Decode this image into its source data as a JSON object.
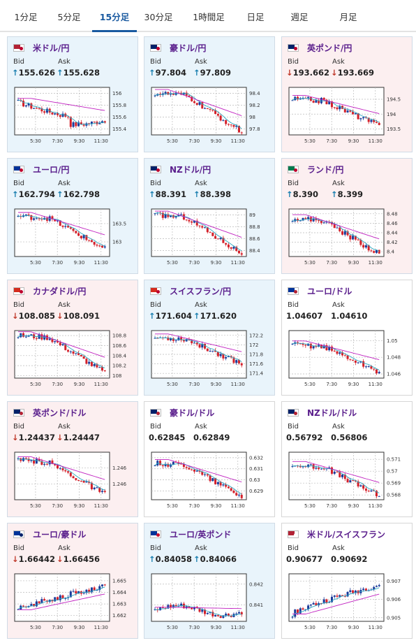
{
  "tabs": [
    {
      "label": "1分足",
      "active": false
    },
    {
      "label": "5分足",
      "active": false
    },
    {
      "label": "15分足",
      "active": true
    },
    {
      "label": "30分足",
      "active": false
    },
    {
      "label": "1時間足",
      "active": false
    },
    {
      "label": "日足",
      "active": false
    },
    {
      "label": "週足",
      "active": false
    },
    {
      "label": "月足",
      "active": false
    }
  ],
  "labels": {
    "bid": "Bid",
    "ask": "Ask"
  },
  "colors": {
    "up_candle": "#1a3a9a",
    "down_candle": "#d4202a",
    "ma_short": "#2aa8c0",
    "ma_long": "#c020c0",
    "pair_text": "#5a1e8c"
  },
  "x_ticks": [
    "5:30",
    "7:30",
    "9:30",
    "11:30"
  ],
  "cards": [
    {
      "pair": "米ドル/円",
      "flag": "us-jp",
      "bg": "up",
      "bid": "155.626",
      "ask": "155.628",
      "dir": "up",
      "chart_data": {
        "type": "candlestick",
        "y_ticks": [
          "156",
          "155.8",
          "155.6",
          "155.4"
        ],
        "ylim": [
          155.3,
          156.1
        ],
        "start": 155.85,
        "end": 155.55,
        "pattern": "dip"
      }
    },
    {
      "pair": "豪ドル/円",
      "flag": "au-jp",
      "bg": "up",
      "bid": "97.804",
      "ask": "97.809",
      "dir": "up",
      "chart_data": {
        "type": "candlestick",
        "y_ticks": [
          "98.4",
          "98.2",
          "98",
          "97.8"
        ],
        "ylim": [
          97.7,
          98.5
        ],
        "start": 98.4,
        "end": 97.75,
        "pattern": "down"
      }
    },
    {
      "pair": "英ポンド/円",
      "flag": "uk-jp",
      "bg": "down",
      "bid": "193.662",
      "ask": "193.669",
      "dir": "down",
      "chart_data": {
        "type": "candlestick",
        "y_ticks": [
          "194.5",
          "194",
          "193.5"
        ],
        "ylim": [
          193.3,
          194.9
        ],
        "start": 194.5,
        "end": 193.6,
        "pattern": "down"
      }
    },
    {
      "pair": "ユーロ/円",
      "flag": "eu-jp",
      "bg": "up",
      "bid": "162.794",
      "ask": "162.798",
      "dir": "up",
      "chart_data": {
        "type": "candlestick",
        "y_ticks": [
          "163.5",
          "163"
        ],
        "ylim": [
          162.6,
          163.9
        ],
        "start": 163.7,
        "end": 162.8,
        "pattern": "down"
      }
    },
    {
      "pair": "NZドル/円",
      "flag": "nz-jp",
      "bg": "up",
      "bid": "88.391",
      "ask": "88.398",
      "dir": "up",
      "chart_data": {
        "type": "candlestick",
        "y_ticks": [
          "89",
          "88.8",
          "88.6",
          "88.4"
        ],
        "ylim": [
          88.3,
          89.1
        ],
        "start": 89.0,
        "end": 88.35,
        "pattern": "down"
      }
    },
    {
      "pair": "ランド/円",
      "flag": "za-jp",
      "bg": "down",
      "bid": "8.390",
      "ask": "8.399",
      "dir": "up",
      "chart_data": {
        "type": "candlestick",
        "y_ticks": [
          "8.48",
          "8.46",
          "8.44",
          "8.42",
          "8.4"
        ],
        "ylim": [
          8.39,
          8.49
        ],
        "start": 8.47,
        "end": 8.395,
        "pattern": "down"
      }
    },
    {
      "pair": "カナダドル/円",
      "flag": "ca-jp",
      "bg": "down",
      "bid": "108.085",
      "ask": "108.091",
      "dir": "down",
      "chart_data": {
        "type": "candlestick",
        "y_ticks": [
          "108.8",
          "108.6",
          "108.4",
          "108.2",
          "108"
        ],
        "ylim": [
          107.95,
          108.9
        ],
        "start": 108.8,
        "end": 108.05,
        "pattern": "down"
      }
    },
    {
      "pair": "スイスフラン/円",
      "flag": "ch-jp",
      "bg": "up",
      "bid": "171.604",
      "ask": "171.620",
      "dir": "up",
      "chart_data": {
        "type": "candlestick",
        "y_ticks": [
          "172.2",
          "172",
          "171.8",
          "171.6",
          "171.4"
        ],
        "ylim": [
          171.3,
          172.3
        ],
        "start": 172.15,
        "end": 171.6,
        "pattern": "down"
      }
    },
    {
      "pair": "ユーロ/ドル",
      "flag": "eu-us",
      "bg": "flat",
      "bid": "1.04607",
      "ask": "1.04610",
      "dir": "none",
      "chart_data": {
        "type": "candlestick",
        "y_ticks": [
          "1.05",
          "1.048",
          "1.046"
        ],
        "ylim": [
          1.0455,
          1.0512
        ],
        "start": 1.0495,
        "end": 1.0462,
        "pattern": "down"
      }
    },
    {
      "pair": "英ポンド/ドル",
      "flag": "uk-us",
      "bg": "down",
      "bid": "1.24437",
      "ask": "1.24447",
      "dir": "down",
      "chart_data": {
        "type": "candlestick",
        "y_ticks": [
          "1.246",
          "1.246"
        ],
        "ylim": [
          1.2438,
          1.2472
        ],
        "start": 1.2466,
        "end": 1.2442,
        "pattern": "down"
      }
    },
    {
      "pair": "豪ドル/ドル",
      "flag": "au-us",
      "bg": "flat",
      "bid": "0.62845",
      "ask": "0.62849",
      "dir": "none",
      "chart_data": {
        "type": "candlestick",
        "y_ticks": [
          "0.632",
          "0.631",
          "0.63",
          "0.629"
        ],
        "ylim": [
          0.6282,
          0.6325
        ],
        "start": 0.6315,
        "end": 0.6285,
        "pattern": "down"
      }
    },
    {
      "pair": "NZドル/ドル",
      "flag": "nz-us",
      "bg": "flat",
      "bid": "0.56792",
      "ask": "0.56806",
      "dir": "none",
      "chart_data": {
        "type": "candlestick",
        "y_ticks": [
          "0.571",
          "0.57",
          "0.569",
          "0.568"
        ],
        "ylim": [
          0.5676,
          0.5716
        ],
        "start": 0.5705,
        "end": 0.5679,
        "pattern": "down"
      }
    },
    {
      "pair": "ユーロ/豪ドル",
      "flag": "eu-au",
      "bg": "down",
      "bid": "1.66442",
      "ask": "1.66456",
      "dir": "down",
      "chart_data": {
        "type": "candlestick",
        "y_ticks": [
          "1.665",
          "1.664",
          "1.663",
          "1.662"
        ],
        "ylim": [
          1.6615,
          1.6656
        ],
        "start": 1.6625,
        "end": 1.6645,
        "pattern": "up"
      }
    },
    {
      "pair": "ユーロ/英ポンド",
      "flag": "eu-uk",
      "bg": "up",
      "bid": "0.84058",
      "ask": "0.84066",
      "dir": "up",
      "chart_data": {
        "type": "candlestick",
        "y_ticks": [
          "0.842",
          "0.841"
        ],
        "ylim": [
          0.8402,
          0.8425
        ],
        "start": 0.8407,
        "end": 0.8406,
        "pattern": "flat"
      }
    },
    {
      "pair": "米ドル/スイスフラン",
      "flag": "us-ch",
      "bg": "flat",
      "bid": "0.90677",
      "ask": "0.90692",
      "dir": "none",
      "chart_data": {
        "type": "candlestick",
        "y_ticks": [
          "0.907",
          "0.906",
          "0.905"
        ],
        "ylim": [
          0.9048,
          0.9074
        ],
        "start": 0.9052,
        "end": 0.9068,
        "pattern": "up"
      }
    }
  ]
}
